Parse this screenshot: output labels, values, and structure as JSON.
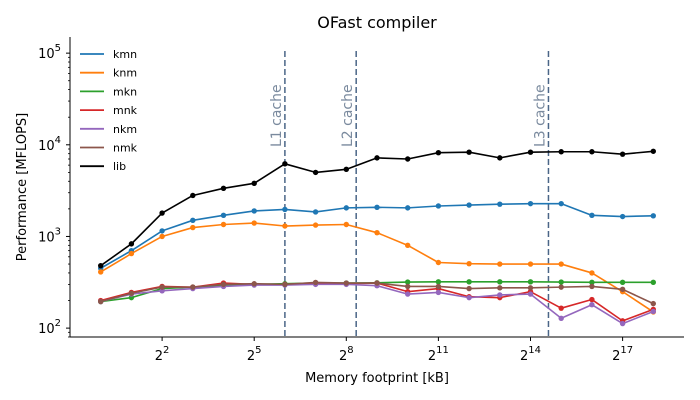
{
  "chart_data": {
    "type": "line",
    "title": "OFast compiler",
    "xlabel": "Memory footprint [kB]",
    "ylabel": "Performance [MFLOPS]",
    "x_scale": "log2",
    "y_scale": "log10",
    "xlim": [
      0.5,
      524288
    ],
    "ylim": [
      80,
      150000
    ],
    "x_ticks": [
      {
        "value": 4,
        "base": "2",
        "exp": "2"
      },
      {
        "value": 32,
        "base": "2",
        "exp": "5"
      },
      {
        "value": 256,
        "base": "2",
        "exp": "8"
      },
      {
        "value": 2048,
        "base": "2",
        "exp": "11"
      },
      {
        "value": 16384,
        "base": "2",
        "exp": "14"
      },
      {
        "value": 131072,
        "base": "2",
        "exp": "17"
      }
    ],
    "y_ticks": [
      {
        "value": 100,
        "base": "10",
        "exp": "2"
      },
      {
        "value": 1000,
        "base": "10",
        "exp": "3"
      },
      {
        "value": 10000,
        "base": "10",
        "exp": "4"
      },
      {
        "value": 100000,
        "base": "10",
        "exp": "5"
      }
    ],
    "x": [
      1,
      2,
      4,
      8,
      16,
      32,
      64,
      128,
      256,
      512,
      1024,
      2048,
      4096,
      8192,
      16384,
      32768,
      65536,
      131072,
      262144
    ],
    "series": [
      {
        "name": "kmn",
        "color": "#1f77b4",
        "values": [
          450,
          700,
          1150,
          1500,
          1700,
          1900,
          1970,
          1850,
          2050,
          2080,
          2050,
          2150,
          2200,
          2250,
          2280,
          2280,
          1700,
          1650,
          1680
        ]
      },
      {
        "name": "knm",
        "color": "#ff7f0e",
        "values": [
          410,
          650,
          1000,
          1250,
          1350,
          1400,
          1300,
          1330,
          1350,
          1100,
          800,
          520,
          505,
          500,
          500,
          500,
          400,
          250,
          150
        ]
      },
      {
        "name": "mkn",
        "color": "#2ca02c",
        "values": [
          195,
          215,
          270,
          280,
          290,
          300,
          305,
          310,
          310,
          312,
          318,
          320,
          320,
          320,
          320,
          318,
          316,
          316,
          316
        ]
      },
      {
        "name": "mnk",
        "color": "#d62728",
        "values": [
          200,
          245,
          285,
          280,
          310,
          300,
          300,
          310,
          305,
          310,
          250,
          270,
          220,
          215,
          250,
          165,
          205,
          120,
          160
        ]
      },
      {
        "name": "nkm",
        "color": "#9467bd",
        "values": [
          195,
          235,
          255,
          270,
          285,
          295,
          295,
          300,
          300,
          290,
          235,
          245,
          215,
          230,
          235,
          128,
          180,
          112,
          152
        ]
      },
      {
        "name": "nmk",
        "color": "#8c564b",
        "values": [
          195,
          240,
          280,
          280,
          300,
          305,
          300,
          315,
          310,
          310,
          285,
          285,
          270,
          275,
          275,
          280,
          285,
          265,
          185
        ]
      },
      {
        "name": "lib",
        "color": "#000000",
        "values": [
          480,
          830,
          1800,
          2800,
          3350,
          3800,
          6200,
          5000,
          5400,
          7200,
          7000,
          8200,
          8300,
          7200,
          8300,
          8400,
          8400,
          7900,
          8500
        ]
      }
    ],
    "vlines": [
      {
        "x": 64,
        "label": "L1 cache"
      },
      {
        "x": 320,
        "label": "L2 cache"
      },
      {
        "x": 24576,
        "label": "L3 cache"
      }
    ],
    "vline_color": "#4a6587",
    "vline_label_color": "#7a8a9e",
    "legend_position": "upper-left",
    "grid": false
  }
}
